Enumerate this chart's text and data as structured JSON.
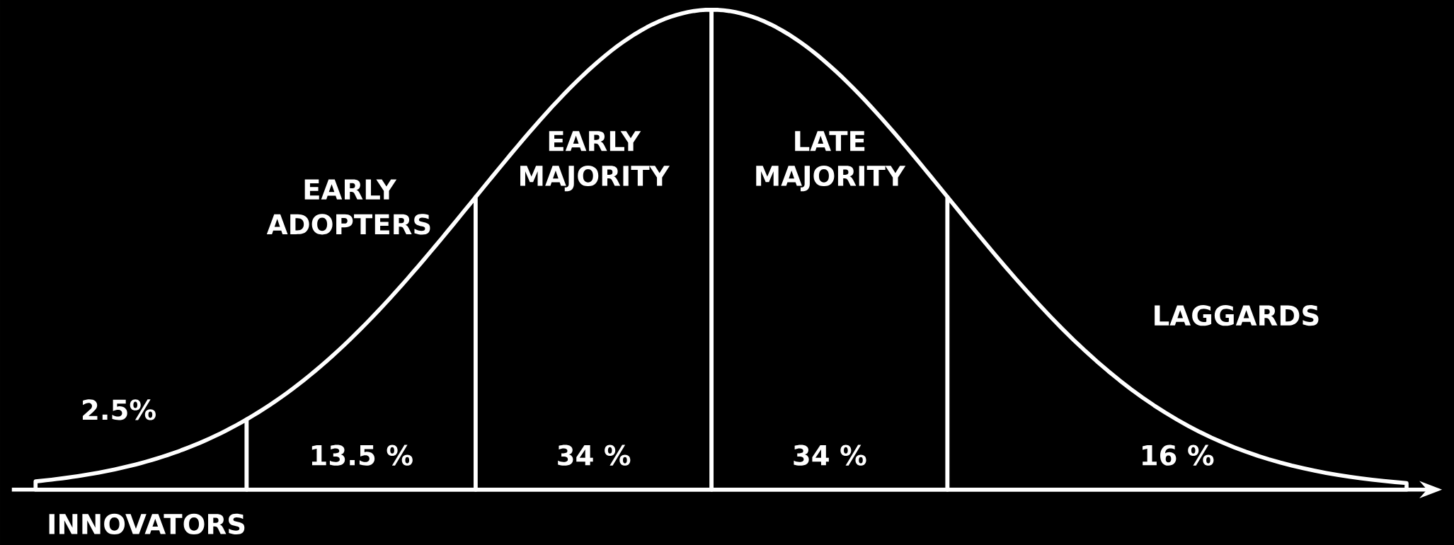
{
  "chart_data": {
    "type": "other",
    "categories": [
      "INNOVATORS",
      "EARLY ADOPTERS",
      "EARLY MAJORITY",
      "LATE MAJORITY",
      "LAGGARDS"
    ],
    "values": [
      2.5,
      13.5,
      34,
      34,
      16
    ],
    "value_labels": [
      "2.5%",
      "13.5 %",
      "34 %",
      "34 %",
      "16 %"
    ],
    "color": "#ffffff"
  }
}
